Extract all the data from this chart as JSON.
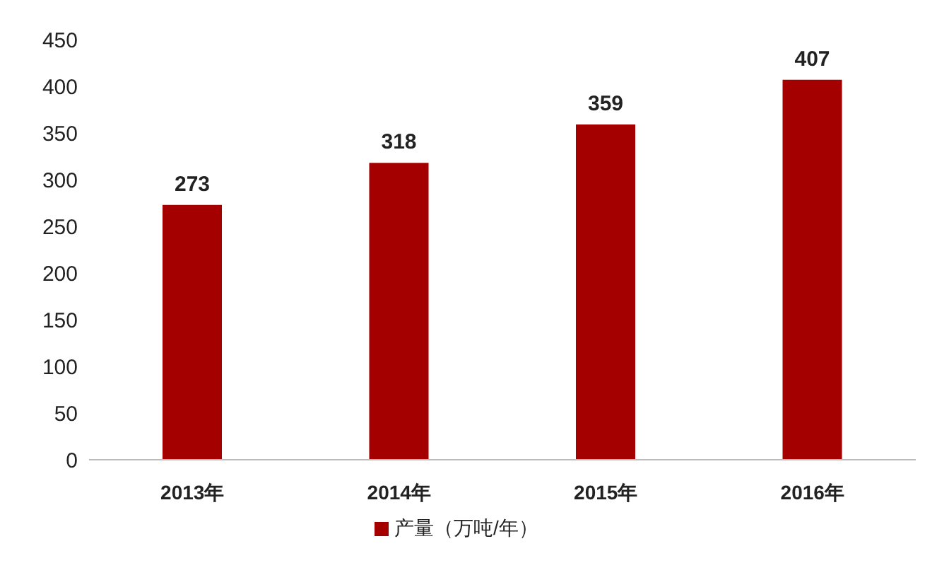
{
  "chart_data": {
    "type": "bar",
    "categories": [
      "2013年",
      "2014年",
      "2015年",
      "2016年"
    ],
    "series": [
      {
        "name": "产量（万吨/年）",
        "color": "#a50000",
        "values": [
          273,
          318,
          359,
          407
        ]
      }
    ],
    "ylim": [
      0,
      450
    ],
    "yticks": [
      0,
      50,
      100,
      150,
      200,
      250,
      300,
      350,
      400,
      450
    ],
    "grid": false,
    "legend": "bottom",
    "data_labels": true
  }
}
